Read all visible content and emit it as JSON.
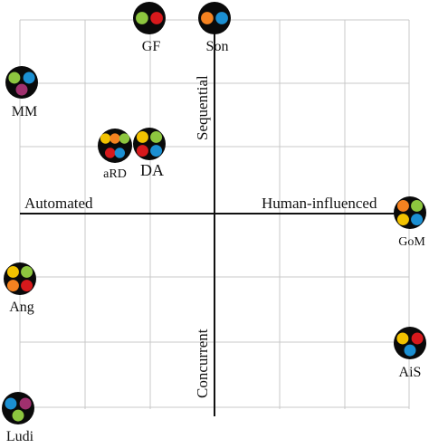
{
  "colors": {
    "background": "#ffffff",
    "grid": "#c8c8c8",
    "axis": "#111111",
    "badge": "#0a0a0a",
    "palette": {
      "yellow": "#f2c200",
      "orange": "#f58220",
      "green": "#8dc63f",
      "red": "#d7191c",
      "blue": "#1b8fd2",
      "purple": "#a0306e"
    }
  },
  "axes": {
    "left": "Automated",
    "right": "Human-influenced",
    "top": "Sequential",
    "bottom": "Concurrent"
  },
  "items": [
    {
      "id": "gf",
      "label": "GF",
      "colors": [
        "green",
        "red"
      ]
    },
    {
      "id": "son",
      "label": "Son",
      "colors": [
        "orange",
        "blue"
      ]
    },
    {
      "id": "mm",
      "label": "MM",
      "colors": [
        "green",
        "blue",
        "purple"
      ]
    },
    {
      "id": "ard",
      "label": "aRD",
      "colors": [
        "yellow",
        "orange",
        "green",
        "red",
        "blue"
      ]
    },
    {
      "id": "da",
      "label": "DA",
      "colors": [
        "yellow",
        "green",
        "red",
        "blue"
      ]
    },
    {
      "id": "gom",
      "label": "GoM",
      "colors": [
        "orange",
        "green",
        "yellow",
        "blue"
      ]
    },
    {
      "id": "ang",
      "label": "Ang",
      "colors": [
        "yellow",
        "green",
        "orange",
        "red"
      ]
    },
    {
      "id": "ais",
      "label": "AiS",
      "colors": [
        "yellow",
        "red",
        "blue"
      ]
    },
    {
      "id": "ludi",
      "label": "Ludi",
      "colors": [
        "blue",
        "purple",
        "green"
      ]
    }
  ]
}
